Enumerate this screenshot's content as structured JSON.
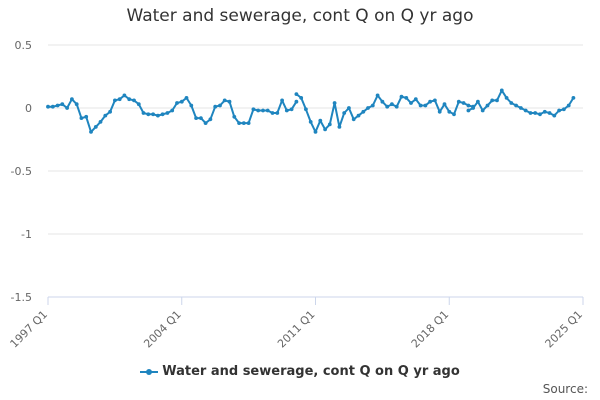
{
  "chart_data": {
    "type": "line",
    "title": "Water and sewerage, cont Q on Q yr ago",
    "series": [
      {
        "name": "Water and sewerage, cont Q on Q yr ago",
        "color": "#1f85bf",
        "segments": [
          [
            0.01,
            0.01,
            0.02,
            0.03,
            0.0,
            0.07,
            0.03,
            -0.08,
            -0.07,
            -0.19,
            -0.15,
            -0.11,
            -0.06,
            -0.03,
            0.06,
            0.07,
            0.1,
            0.07,
            0.06,
            0.03,
            -0.04,
            -0.05,
            -0.05,
            -0.06,
            -0.05,
            -0.04,
            -0.02,
            0.04,
            0.05,
            0.08,
            0.02,
            -0.08,
            -0.08,
            -0.12,
            -0.09,
            0.01,
            0.02,
            0.06,
            0.05,
            -0.07,
            -0.12,
            -0.12,
            -0.12,
            -0.01,
            -0.02,
            -0.02,
            -0.02,
            -0.04,
            -0.04,
            0.06,
            -0.02,
            -0.01,
            0.05
          ],
          [
            0.11,
            0.08,
            -0.01,
            -0.11,
            -0.19,
            -0.1,
            -0.17,
            -0.13,
            0.04,
            -0.15,
            -0.04,
            0.0,
            -0.09,
            -0.06,
            -0.03,
            0.0,
            0.02,
            0.1,
            0.05,
            0.01,
            0.03,
            0.01,
            0.09,
            0.08,
            0.04,
            0.07,
            0.02,
            0.02,
            0.05,
            0.06,
            -0.03,
            0.03,
            -0.03,
            -0.05,
            0.05,
            0.04,
            0.02,
            0.01
          ],
          [
            -0.02,
            0.0,
            0.05,
            -0.02,
            0.02,
            0.06,
            0.06,
            0.14,
            0.08,
            0.04,
            0.02,
            0.0,
            -0.02,
            -0.04,
            -0.04,
            -0.05,
            -0.03,
            -0.04,
            -0.06,
            -0.02,
            -0.01,
            0.02,
            0.08
          ]
        ]
      }
    ],
    "x_tick_labels": [
      "1997 Q1",
      "2004 Q1",
      "2011 Q1",
      "2018 Q1",
      "2025 Q1"
    ],
    "x_tick_start_year": 1997,
    "x_tick_end_year": 2025,
    "segment_start_quarters": [
      "1997 Q1",
      "2010 Q1",
      "2019 Q1"
    ],
    "y_ticks": [
      "0.5",
      "0",
      "-0.5",
      "-1",
      "-1.5"
    ],
    "ylim": [
      -1.5,
      0.5
    ],
    "grid": true,
    "legend_position": "bottom"
  },
  "source_label": "Source:"
}
